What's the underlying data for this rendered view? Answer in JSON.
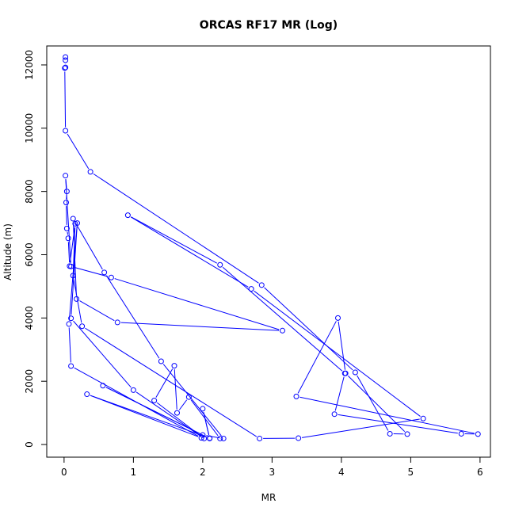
{
  "chart_data": {
    "type": "line",
    "title": "ORCAS RF17 MR (Log)",
    "xlabel": "MR",
    "ylabel": "Altitude (m)",
    "xlim": [
      -0.25,
      6.15
    ],
    "ylim": [
      -400,
      12600
    ],
    "xticks": [
      0,
      1,
      2,
      3,
      4,
      5,
      6
    ],
    "yticks": [
      0,
      2000,
      4000,
      6000,
      8000,
      10000,
      12000
    ],
    "grid": false,
    "legend": "none",
    "markers": "open-circle",
    "color": "#0000ff",
    "series": [
      {
        "points": [
          [
            0.02,
            12250
          ],
          [
            0.02,
            12150
          ],
          [
            0.02,
            11920
          ],
          [
            0.01,
            11900
          ],
          [
            0.02,
            9920
          ],
          [
            0.38,
            8620
          ],
          [
            2.85,
            5040
          ],
          [
            4.2,
            2280
          ],
          [
            4.7,
            340
          ],
          [
            4.95,
            330
          ],
          [
            4.06,
            2250
          ],
          [
            3.95,
            4000
          ],
          [
            3.35,
            1520
          ],
          [
            5.97,
            330
          ],
          [
            5.73,
            340
          ],
          [
            3.9,
            960
          ],
          [
            4.05,
            2250
          ],
          [
            2.25,
            5680
          ],
          [
            0.92,
            7250
          ],
          [
            2.7,
            4920
          ],
          [
            5.18,
            820
          ],
          [
            3.38,
            200
          ],
          [
            2.82,
            190
          ],
          [
            0.26,
            3740
          ],
          [
            0.13,
            5340
          ],
          [
            0.16,
            6980
          ],
          [
            0.08,
            5640
          ],
          [
            0.06,
            6520
          ],
          [
            0.04,
            6830
          ],
          [
            0.03,
            7650
          ],
          [
            0.04,
            8000
          ],
          [
            0.02,
            8500
          ],
          [
            0.1,
            5630
          ],
          [
            0.68,
            5280
          ],
          [
            3.15,
            3600
          ],
          [
            0.77,
            3860
          ],
          [
            0.18,
            4600
          ],
          [
            0.13,
            7140
          ],
          [
            0.58,
            5440
          ],
          [
            1.4,
            2630
          ],
          [
            2.3,
            190
          ],
          [
            2.0,
            300
          ],
          [
            0.56,
            1860
          ],
          [
            2.1,
            190
          ],
          [
            2.0,
            1130
          ],
          [
            2.1,
            200
          ],
          [
            0.33,
            1590
          ],
          [
            1.98,
            210
          ],
          [
            0.1,
            2480
          ],
          [
            0.07,
            3810
          ],
          [
            0.19,
            7000
          ],
          [
            0.1,
            3990
          ],
          [
            1.0,
            1720
          ],
          [
            2.02,
            190
          ],
          [
            1.3,
            1390
          ],
          [
            1.59,
            2490
          ],
          [
            1.63,
            1000
          ],
          [
            1.8,
            1500
          ],
          [
            2.25,
            190
          ]
        ]
      }
    ]
  }
}
